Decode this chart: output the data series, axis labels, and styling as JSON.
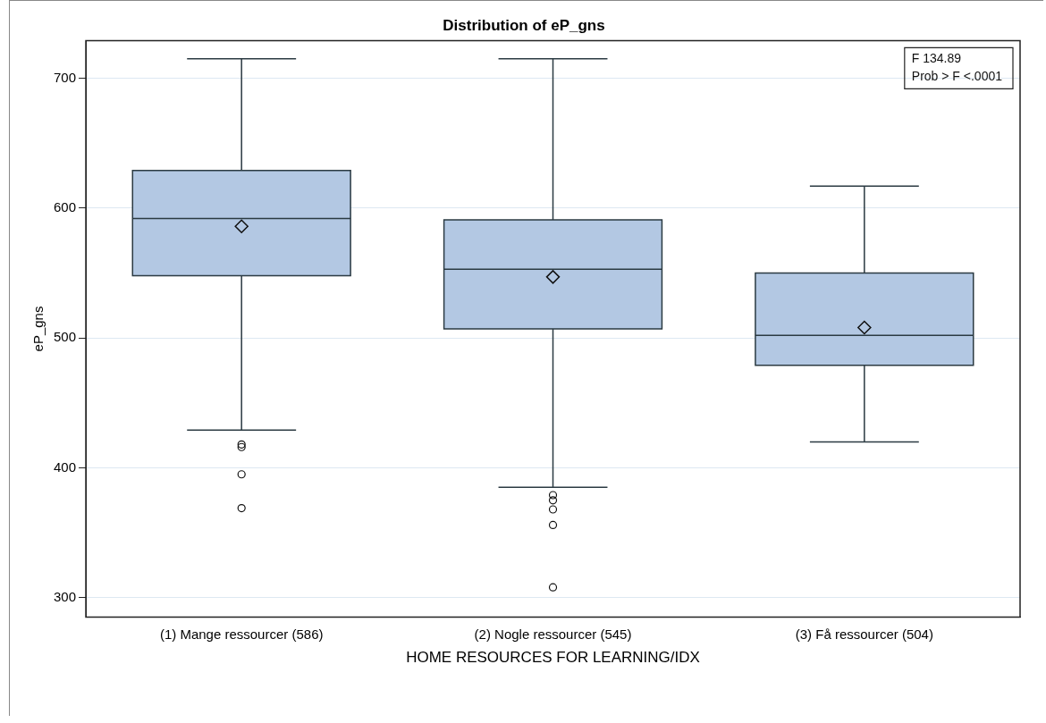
{
  "chart_data": {
    "type": "box",
    "title": "Distribution of eP_gns",
    "xlabel": "HOME RESOURCES FOR LEARNING/IDX",
    "ylabel": "eP_gns",
    "categories": [
      "(1) Mange ressourcer (586)",
      "(2) Nogle ressourcer (545)",
      "(3) Få ressourcer (504)"
    ],
    "color": "#b3c8e3",
    "boxes": [
      {
        "low": 429,
        "q1": 548,
        "median": 592,
        "q3": 629,
        "high": 715,
        "mean": 586,
        "outliers": [
          418,
          416,
          395,
          369
        ]
      },
      {
        "low": 385,
        "q1": 507,
        "median": 553,
        "q3": 591,
        "high": 715,
        "mean": 547,
        "outliers": [
          379,
          375,
          368,
          356,
          308
        ]
      },
      {
        "low": 420,
        "q1": 479,
        "median": 502,
        "q3": 550,
        "high": 617,
        "mean": 508
      }
    ],
    "ylim": [
      285,
      729
    ],
    "yticks": [
      300,
      400,
      500,
      600,
      700
    ],
    "grid": "y",
    "annotations": [
      "F 134.89",
      "Prob > F <.0001"
    ]
  }
}
